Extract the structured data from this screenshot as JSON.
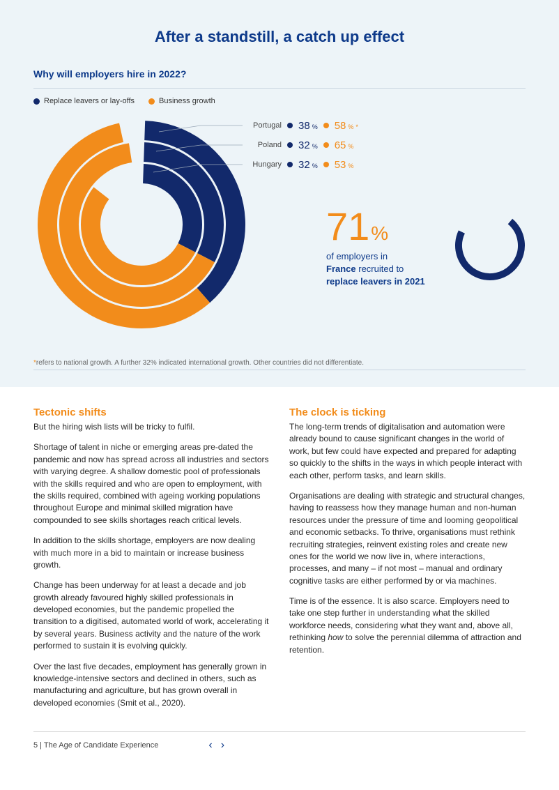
{
  "colors": {
    "navy": "#12296b",
    "orange": "#f28c1b",
    "background_top": "#edf4f8",
    "divider": "#c8d4e0",
    "text_body": "#2a2a2a",
    "footnote": "#666666"
  },
  "header": {
    "title": "After a standstill, a catch up effect",
    "subtitle": "Why will employers hire in 2022?"
  },
  "legend": {
    "items": [
      {
        "label": "Replace leavers or lay-offs",
        "color": "#12296b"
      },
      {
        "label": "Business growth",
        "color": "#f28c1b"
      }
    ]
  },
  "donut": {
    "rings": [
      {
        "country": "Portugal",
        "replace_pct": 38,
        "growth_pct": 58,
        "growth_asterisk": true,
        "radius": 135,
        "stroke": 28
      },
      {
        "country": "Poland",
        "replace_pct": 32,
        "growth_pct": 65,
        "growth_asterisk": false,
        "radius": 104,
        "stroke": 28
      },
      {
        "country": "Hungary",
        "replace_pct": 32,
        "growth_pct": 53,
        "growth_asterisk": false,
        "radius": 73,
        "stroke": 28
      }
    ],
    "gap_deg": 4,
    "start_deg": -90
  },
  "callouts": [
    {
      "label": "Portugal",
      "replace": "38",
      "growth": "58",
      "ast": true
    },
    {
      "label": "Poland",
      "replace": "32",
      "growth": "65",
      "ast": false
    },
    {
      "label": "Hungary",
      "replace": "32",
      "growth": "53",
      "ast": false
    }
  ],
  "stat": {
    "value": "71",
    "unit": "%",
    "line1": "of employers in",
    "bold1": "France",
    "mid": " recruited to",
    "bold2": "replace leavers in 2021",
    "arc_pct": 71,
    "arc_color": "#12296b",
    "arc_bg": "#d7e3ed"
  },
  "footnote": {
    "marker": "*",
    "text": "refers to national growth. A further 32% indicated international growth. Other countries did not differentiate."
  },
  "columns": {
    "left": {
      "heading": "Tectonic shifts",
      "paras": [
        "But the hiring wish lists will be tricky to fulfil.",
        "Shortage of talent in niche or emerging areas pre-dated the pandemic and now has spread across all industries and sectors with varying degree. A shallow domestic pool of professionals with the skills required and who are open to employment, with the skills required, combined with ageing working populations throughout Europe and minimal skilled migration have compounded to see skills shortages reach critical levels.",
        "In addition to the skills shortage, employers are now dealing with much more in a bid to maintain or increase business growth.",
        "Change has been underway for at least a decade and job growth already favoured highly skilled professionals in developed economies, but the pandemic propelled the transition to a digitised, automated world of work, accelerating it by several years. Business activity and the nature of the work performed to sustain it is evolving quickly.",
        "Over the last five decades, employment has generally grown in knowledge-intensive sectors and declined in others, such as manufacturing and agriculture, but has grown overall in developed economies (Smit et al., 2020)."
      ]
    },
    "right": {
      "heading": "The clock is ticking",
      "paras": [
        "The long-term trends of digitalisation and automation were already bound to cause significant changes in the world of work, but few could have expected and prepared for adapting so quickly to the shifts in the ways in which people interact with each other, perform tasks, and learn skills.",
        "Organisations are dealing with strategic and structural changes, having to reassess how they manage human and non-human resources under the pressure of time and looming geopolitical and economic setbacks. To thrive, organisations must rethink recruiting strategies, reinvent existing roles and create new ones for the world we now live in, where interactions, processes, and many – if not most – manual and ordinary cognitive tasks are either performed by or via machines.",
        "Time is of the essence. It is also scarce. Employers need to take one step further in understanding what the skilled workforce needs, considering what they want and, above all, rethinking <em>how</em> to solve the perennial dilemma of attraction and retention."
      ]
    }
  },
  "footer": {
    "page_label": "5 | The Age of Candidate Experience"
  }
}
